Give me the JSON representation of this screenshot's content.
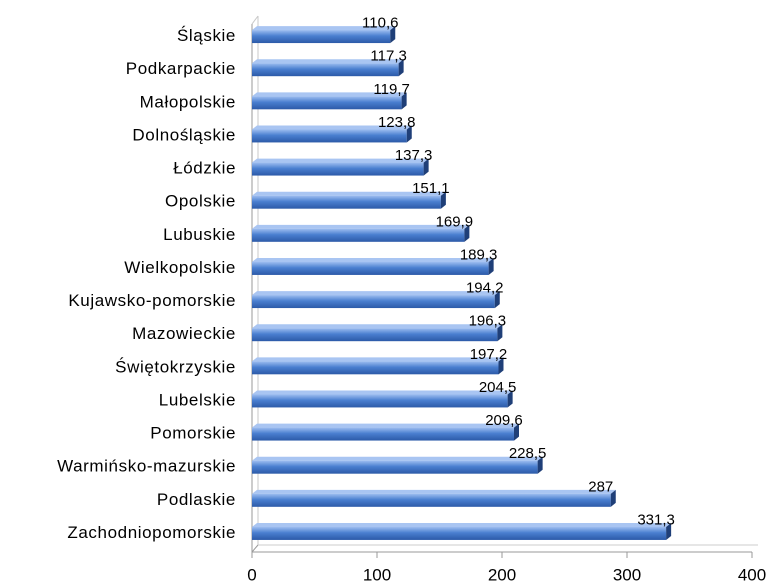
{
  "chart_data": {
    "type": "bar",
    "orientation": "horizontal",
    "categories": [
      "Śląskie",
      "Podkarpackie",
      "Małopolskie",
      "Dolnośląskie",
      "Łódzkie",
      "Opolskie",
      "Lubuskie",
      "Wielkopolskie",
      "Kujawsko-pomorskie",
      "Mazowieckie",
      "Świętokrzyskie",
      "Lubelskie",
      "Pomorskie",
      "Warmińsko-mazurskie",
      "Podlaskie",
      "Zachodniopomorskie"
    ],
    "values": [
      110.6,
      117.3,
      119.7,
      123.8,
      137.3,
      151.1,
      169.9,
      189.3,
      194.2,
      196.3,
      197.2,
      204.5,
      209.6,
      228.5,
      287,
      331.3
    ],
    "value_labels": [
      "110,6",
      "117,3",
      "119,7",
      "123,8",
      "137,3",
      "151,1",
      "169,9",
      "189,3",
      "194,2",
      "196,3",
      "197,2",
      "204,5",
      "209,6",
      "228,5",
      "287",
      "331,3"
    ],
    "color": "#4a7fd0",
    "xlim": [
      0,
      400
    ],
    "xticks": [
      0,
      100,
      200,
      300,
      400
    ]
  }
}
